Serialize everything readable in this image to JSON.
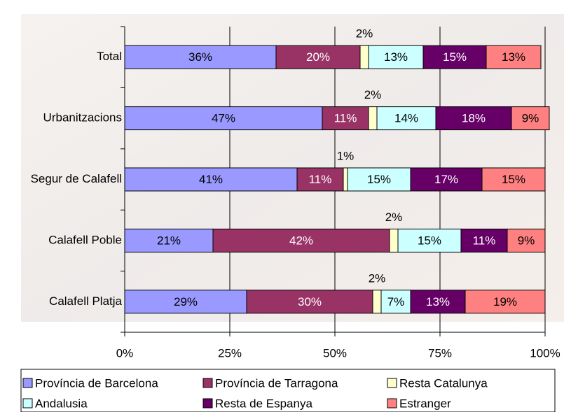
{
  "chart_data": {
    "type": "stacked_barh",
    "categories": [
      "Total",
      "Urbanitzacions",
      "Segur de Calafell",
      "Calafell Poble",
      "Calafell Platja"
    ],
    "series": [
      {
        "name": "Província de Barcelona",
        "color": "#9999ff",
        "values": [
          36,
          47,
          41,
          21,
          29
        ],
        "value_labels": [
          "36%",
          "47%",
          "41%",
          "21%",
          "29%"
        ]
      },
      {
        "name": "Província de Tarragona",
        "color": "#993366",
        "values": [
          20,
          11,
          11,
          42,
          30
        ],
        "value_labels": [
          "20%",
          "11%",
          "11%",
          "42%",
          "30%"
        ]
      },
      {
        "name": "Resta Catalunya",
        "color": "#ffffcc",
        "values": [
          2,
          2,
          1,
          2,
          2
        ],
        "value_labels": [
          "2%",
          "2%",
          "1%",
          "2%",
          "2%"
        ]
      },
      {
        "name": "Andalusia",
        "color": "#ccffff",
        "values": [
          13,
          14,
          15,
          15,
          7
        ],
        "value_labels": [
          "13%",
          "14%",
          "15%",
          "15%",
          "7%"
        ]
      },
      {
        "name": "Resta de Espanya",
        "color": "#660066",
        "values": [
          15,
          18,
          17,
          11,
          13
        ],
        "value_labels": [
          "15%",
          "18%",
          "17%",
          "11%",
          "13%"
        ]
      },
      {
        "name": "Estranger",
        "color": "#ff8080",
        "values": [
          13,
          9,
          15,
          9,
          19
        ],
        "value_labels": [
          "13%",
          "9%",
          "15%",
          "9%",
          "19%"
        ]
      }
    ],
    "xlim": [
      0,
      100
    ],
    "xticks": [
      {
        "value": 0,
        "label": "0%"
      },
      {
        "value": 25,
        "label": "25%"
      },
      {
        "value": 50,
        "label": "50%"
      },
      {
        "value": 75,
        "label": "75%"
      },
      {
        "value": 100,
        "label": "100%"
      }
    ],
    "grid": true
  }
}
